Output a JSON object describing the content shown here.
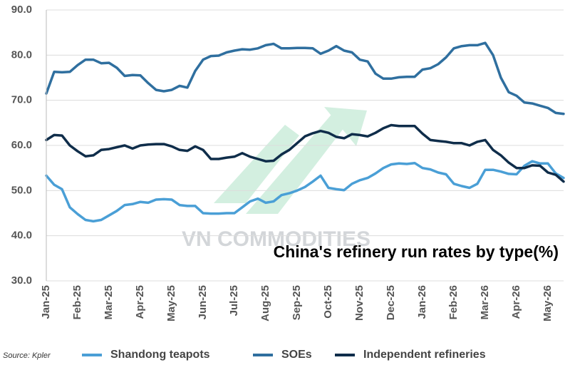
{
  "chart_data": {
    "type": "line",
    "title": "China's refinery run rates by type(%)",
    "source": "Source: Kpler",
    "watermark": "VN COMMODITIES",
    "categories": [
      "Jan-25",
      null,
      null,
      null,
      "Feb-25",
      null,
      null,
      null,
      "Mar-25",
      null,
      null,
      null,
      "Apr-25",
      null,
      null,
      null,
      "May-25",
      null,
      null,
      null,
      "Jun-25",
      null,
      null,
      null,
      "Jul-25",
      null,
      null,
      null,
      "Aug-25",
      null,
      null,
      null,
      "Sep-25",
      null,
      null,
      null,
      "Oct-25",
      null,
      null,
      null,
      "Nov-25",
      null,
      null,
      null,
      "Dec-25",
      null,
      null,
      null,
      "Jan-26",
      null,
      null,
      null,
      "Feb-26",
      null,
      null,
      null,
      "Mar-26",
      null,
      null,
      null,
      "Apr-26",
      null,
      null,
      null,
      "May-26",
      null,
      null
    ],
    "series": [
      {
        "name": "Shandong teapots",
        "color": "#4a9fd6",
        "values": [
          53.3,
          51.3,
          50.3,
          46.3,
          44.8,
          43.5,
          43.2,
          43.5,
          44.5,
          45.5,
          46.8,
          47.0,
          47.5,
          47.3,
          48.0,
          48.1,
          48.0,
          46.8,
          46.6,
          46.6,
          45.0,
          44.9,
          44.9,
          45.0,
          45.0,
          46.3,
          47.6,
          48.2,
          47.3,
          47.6,
          49.0,
          49.4,
          50.0,
          50.8,
          52.0,
          53.3,
          50.6,
          50.3,
          50.1,
          51.5,
          52.3,
          52.8,
          53.8,
          55.0,
          55.8,
          56.0,
          55.9,
          56.1,
          55.0,
          54.7,
          54.0,
          53.6,
          51.5,
          51.0,
          50.6,
          51.5,
          54.6,
          54.6,
          54.2,
          53.7,
          53.6,
          55.5,
          56.5,
          56.0,
          56.0,
          53.8,
          52.8
        ]
      },
      {
        "name": "SOEs",
        "color": "#2f6f9f",
        "values": [
          71.5,
          76.3,
          76.2,
          76.3,
          77.8,
          79.0,
          79.0,
          78.2,
          78.3,
          77.2,
          75.4,
          75.6,
          75.5,
          73.8,
          72.3,
          72.0,
          72.3,
          73.2,
          72.8,
          76.5,
          79.0,
          79.8,
          79.9,
          80.6,
          81.0,
          81.3,
          81.2,
          81.5,
          82.2,
          82.5,
          81.5,
          81.5,
          81.6,
          81.6,
          81.5,
          80.3,
          81.0,
          82.0,
          81.0,
          80.6,
          79.0,
          78.6,
          75.9,
          74.8,
          74.8,
          75.1,
          75.2,
          75.2,
          76.8,
          77.1,
          78.0,
          79.5,
          81.5,
          82.0,
          82.2,
          82.2,
          82.7,
          80.0,
          75.0,
          71.8,
          71.0,
          69.5,
          69.3,
          68.8,
          68.3,
          67.2,
          67.0
        ]
      },
      {
        "name": "Independent refineries",
        "color": "#0f2d4a",
        "values": [
          61.2,
          62.3,
          62.2,
          60.0,
          58.7,
          57.6,
          57.8,
          59.0,
          59.2,
          59.6,
          60.0,
          59.3,
          60.0,
          60.2,
          60.3,
          60.3,
          59.8,
          59.0,
          58.8,
          59.8,
          59.0,
          57.0,
          57.0,
          57.3,
          57.5,
          58.3,
          57.5,
          57.0,
          56.5,
          56.6,
          58.0,
          59.0,
          60.5,
          62.0,
          62.7,
          63.2,
          62.8,
          61.9,
          61.6,
          62.5,
          62.3,
          62.0,
          62.8,
          63.8,
          64.5,
          64.3,
          64.3,
          64.3,
          62.6,
          61.2,
          61.0,
          60.8,
          60.5,
          60.5,
          60.0,
          60.8,
          61.2,
          59.0,
          57.8,
          56.2,
          55.0,
          55.0,
          55.6,
          55.5,
          54.0,
          53.5,
          52.0
        ]
      }
    ],
    "ylim": [
      30,
      90
    ],
    "yticks": [
      {
        "value": 30,
        "label": "30.0"
      },
      {
        "value": 40,
        "label": "40.0"
      },
      {
        "value": 50,
        "label": "50.0"
      },
      {
        "value": 60,
        "label": "60.0"
      },
      {
        "value": 70,
        "label": "70.0"
      },
      {
        "value": 80,
        "label": "80.0"
      },
      {
        "value": 90,
        "label": "90.0"
      }
    ],
    "grid": true,
    "legend": "bottom"
  }
}
